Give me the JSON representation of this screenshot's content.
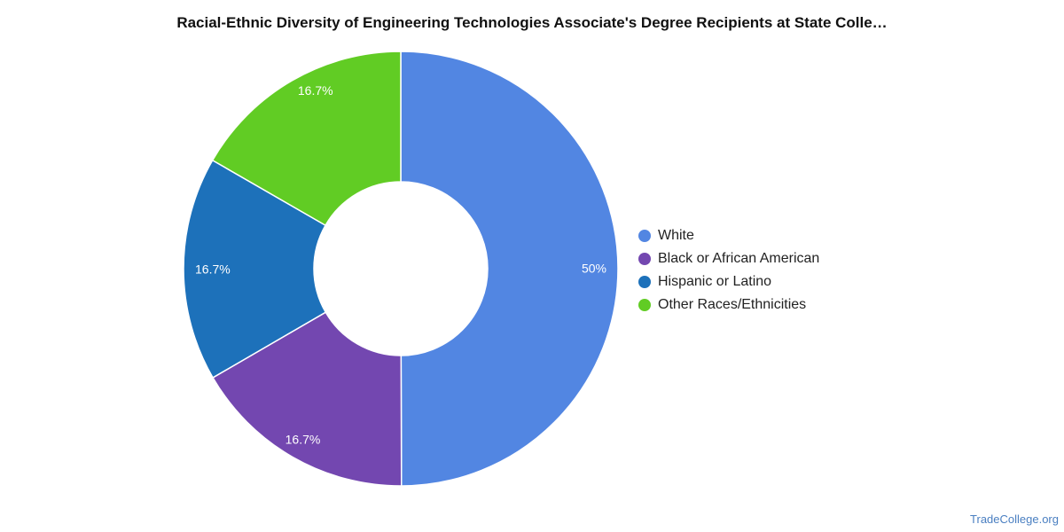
{
  "chart_data": {
    "type": "pie",
    "title": "Racial-Ethnic Diversity of Engineering Technologies Associate's Degree Recipients at State Colle…",
    "donut": true,
    "legend_position": "right",
    "slices": [
      {
        "name": "White",
        "value": 50,
        "label": "50%",
        "color": "#5286e2"
      },
      {
        "name": "Black or African American",
        "value": 16.7,
        "label": "16.7%",
        "color": "#7347b0"
      },
      {
        "name": "Hispanic or Latino",
        "value": 16.7,
        "label": "16.7%",
        "color": "#1d71ba"
      },
      {
        "name": "Other Races/Ethnicities",
        "value": 16.7,
        "label": "16.7%",
        "color": "#61cc24"
      }
    ]
  },
  "watermark": "TradeCollege.org"
}
